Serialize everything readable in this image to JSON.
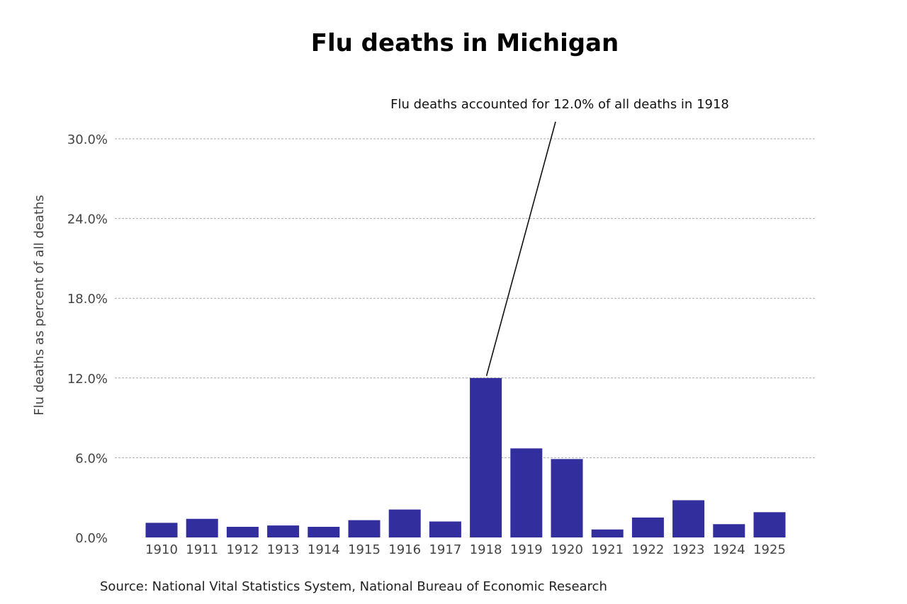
{
  "chart_data": {
    "type": "bar",
    "title": "Flu deaths in Michigan",
    "xlabel": "",
    "ylabel": "Flu deaths as percent of all deaths",
    "categories": [
      "1910",
      "1911",
      "1912",
      "1913",
      "1914",
      "1915",
      "1916",
      "1917",
      "1918",
      "1919",
      "1920",
      "1921",
      "1922",
      "1923",
      "1924",
      "1925"
    ],
    "values": [
      1.1,
      1.4,
      0.8,
      0.9,
      0.8,
      1.3,
      2.1,
      1.2,
      12.0,
      6.7,
      5.9,
      0.6,
      1.5,
      2.8,
      1.0,
      1.9
    ],
    "ylim": [
      0,
      30
    ],
    "yticks": [
      0,
      6,
      12,
      18,
      24,
      30
    ],
    "ytick_labels": [
      "0.0%",
      "6.0%",
      "12.0%",
      "18.0%",
      "24.0%",
      "30.0%"
    ],
    "grid": "horizontal dashed",
    "bar_color": "#332e9e",
    "annotation": {
      "text": "Flu deaths accounted for 12.0% of all deaths in 1918",
      "target_category": "1918",
      "target_value": 12.0
    },
    "source": "Source: National Vital Statistics System, National Bureau of Economic Research"
  }
}
